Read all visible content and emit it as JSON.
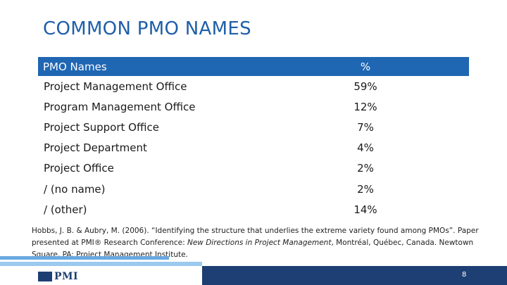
{
  "slide": {
    "title": "COMMON PMO NAMES"
  },
  "table": {
    "headers": [
      "PMO Names",
      "%"
    ],
    "rows": [
      [
        "Project Management Office",
        "59%"
      ],
      [
        "Program Management Office",
        "12%"
      ],
      [
        "Project Support Office",
        "7%"
      ],
      [
        "Project Department",
        "4%"
      ],
      [
        "Project Office",
        "2%"
      ],
      [
        "/ (no name)",
        "2%"
      ],
      [
        "/ (other)",
        "14%"
      ]
    ]
  },
  "citation": {
    "part1": "Hobbs, J. B. & Aubry, M. (2006). “Identifying the structure that underlies the extreme variety found among PMOs”. Paper presented at PMI® Research Conference: ",
    "italic": "New Directions in Project Management",
    "part2": ", Montréal, Québec, Canada. Newtown Square, PA: Project Management Institute."
  },
  "footer": {
    "logo_text": "PMI",
    "page_number": "8"
  },
  "colors": {
    "title": "#1f5fa8",
    "header_bg": "#1f66b3",
    "footer_bg": "#1e3f73",
    "accent_light": "#9cc9ef",
    "accent_mid": "#6ba8df"
  }
}
